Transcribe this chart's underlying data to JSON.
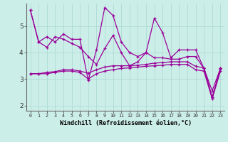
{
  "xlabel": "Windchill (Refroidissement éolien,°C)",
  "background_color": "#cceee8",
  "line_color": "#990099",
  "xlim": [
    -0.5,
    23.5
  ],
  "ylim": [
    1.8,
    5.85
  ],
  "yticks": [
    2,
    3,
    4,
    5
  ],
  "xticks": [
    0,
    1,
    2,
    3,
    4,
    5,
    6,
    7,
    8,
    9,
    10,
    11,
    12,
    13,
    14,
    15,
    16,
    17,
    18,
    19,
    20,
    21,
    22,
    23
  ],
  "series1": [
    5.6,
    4.4,
    4.6,
    4.4,
    4.7,
    4.5,
    4.5,
    2.95,
    4.1,
    5.7,
    5.4,
    4.4,
    4.0,
    3.85,
    4.0,
    5.3,
    4.75,
    3.8,
    4.1,
    4.1,
    4.1,
    3.4,
    2.3,
    3.4
  ],
  "series2": [
    5.6,
    4.4,
    4.2,
    4.6,
    4.5,
    4.35,
    4.2,
    3.85,
    3.55,
    4.15,
    4.65,
    4.0,
    3.5,
    3.65,
    4.0,
    3.8,
    3.8,
    3.75,
    3.75,
    3.85,
    3.85,
    3.4,
    2.55,
    3.4
  ],
  "series3": [
    3.2,
    3.2,
    3.25,
    3.28,
    3.35,
    3.35,
    3.3,
    3.22,
    3.35,
    3.45,
    3.5,
    3.5,
    3.5,
    3.52,
    3.55,
    3.6,
    3.62,
    3.65,
    3.65,
    3.65,
    3.48,
    3.42,
    2.3,
    3.38
  ],
  "series4": [
    3.2,
    3.2,
    3.2,
    3.25,
    3.3,
    3.3,
    3.25,
    3.0,
    3.2,
    3.3,
    3.35,
    3.4,
    3.42,
    3.45,
    3.48,
    3.5,
    3.52,
    3.55,
    3.55,
    3.55,
    3.35,
    3.3,
    2.25,
    3.3
  ]
}
